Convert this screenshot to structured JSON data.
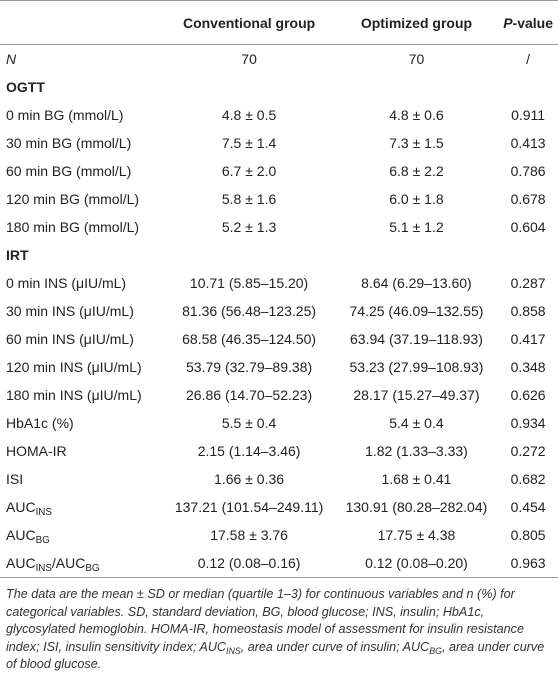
{
  "table": {
    "header": [
      "",
      "Conventional group",
      "Optimized group",
      [
        {
          "text": "P",
          "style": "italic"
        },
        {
          "text": "-value"
        }
      ]
    ],
    "rows": [
      [
        "N",
        "70",
        "70",
        "/"
      ],
      [
        "OGTT"
      ],
      [
        "0 min BG (mmol/L)",
        "4.8 ± 0.5",
        "4.8 ± 0.6",
        "0.911"
      ],
      [
        "30 min BG (mmol/L)",
        "7.5 ± 1.4",
        "7.3 ± 1.5",
        "0.413"
      ],
      [
        "60 min BG (mmol/L)",
        "6.7 ± 2.0",
        "6.8 ± 2.2",
        "0.786"
      ],
      [
        "120 min BG (mmol/L)",
        "5.8 ± 1.6",
        "6.0 ± 1.8",
        "0.678"
      ],
      [
        "180 min BG (mmol/L)",
        "5.2 ± 1.3",
        "5.1 ± 1.2",
        "0.604"
      ],
      [
        "IRT"
      ],
      [
        "0 min INS (μIU/mL)",
        "10.71 (5.85–15.20)",
        "8.64 (6.29–13.60)",
        "0.287"
      ],
      [
        "30 min INS (μIU/mL)",
        "81.36 (56.48–123.25)",
        "74.25 (46.09–132.55)",
        "0.858"
      ],
      [
        "60 min INS (μIU/mL)",
        "68.58 (46.35–124.50)",
        "63.94 (37.19–118.93)",
        "0.417"
      ],
      [
        "120 min INS (μIU/mL)",
        "53.79 (32.79–89.38)",
        "53.23 (27.99–108.93)",
        "0.348"
      ],
      [
        "180 min INS (μIU/mL)",
        "26.86 (14.70–52.23)",
        "28.17 (15.27–49.37)",
        "0.626"
      ],
      [
        "HbA1c (%)",
        "5.5 ± 0.4",
        "5.4 ± 0.4",
        "0.934"
      ],
      [
        "HOMA-IR",
        "2.15 (1.14–3.46)",
        "1.82 (1.33–3.33)",
        "0.272"
      ],
      [
        "ISI",
        "1.66 ± 0.36",
        "1.68 ± 0.41",
        "0.682"
      ],
      [
        [
          {
            "text": "AUC"
          },
          {
            "text": "INS",
            "style": "sub"
          }
        ],
        "137.21 (101.54–249.11)",
        "130.91 (80.28–282.04)",
        "0.454"
      ],
      [
        [
          {
            "text": "AUC"
          },
          {
            "text": "BG",
            "style": "sub"
          }
        ],
        "17.58 ± 3.76",
        "17.75 ± 4.38",
        "0.805"
      ],
      [
        [
          {
            "text": "AUC"
          },
          {
            "text": "INS",
            "style": "sub"
          },
          {
            "text": "/AUC"
          },
          {
            "text": "BG",
            "style": "sub"
          }
        ],
        "0.12 (0.08–0.16)",
        "0.12 (0.08–0.20)",
        "0.963"
      ]
    ],
    "footnote": [
      {
        "text": "The data are the mean ± SD or median (quartile 1–3) for continuous variables and n (%) for categorical variables. SD, standard deviation, BG, blood glucose; INS, insulin; HbA1c, glycosylated hemoglobin. HOMA-IR, homeostasis model of assessment for insulin resistance index; ISI, insulin sensitivity index; AUC"
      },
      {
        "text": "INS",
        "style": "sub"
      },
      {
        "text": ", area under curve of insulin; AUC"
      },
      {
        "text": "BG",
        "style": "sub"
      },
      {
        "text": ", area under curve of blood glucose."
      }
    ]
  }
}
